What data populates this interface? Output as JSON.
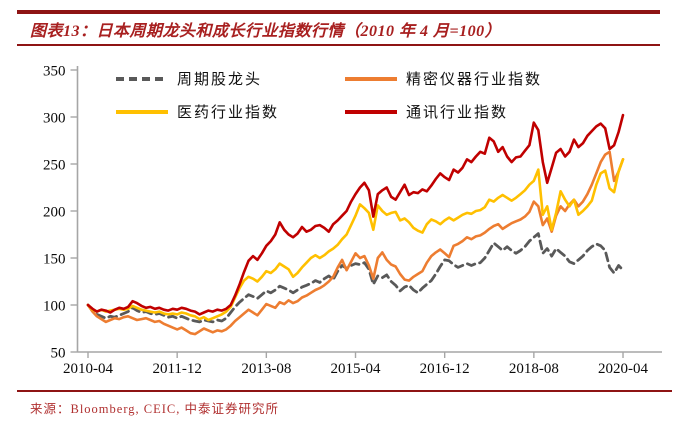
{
  "header": {
    "title": "图表13：日本周期龙头和成长行业指数行情（2010 年 4 月=100）"
  },
  "footer": {
    "source": "来源：Bloomberg, CEIC, 中泰证券研究所"
  },
  "accent_colors": {
    "rule_red": "#8e1414",
    "title_red": "#a82020",
    "source_red": "#b03030",
    "axis_gray": "#a6a6a6"
  },
  "chart_data": {
    "type": "line",
    "title": "日本周期龙头和成长行业指数行情（2010 年 4 月=100）",
    "xlabel": "",
    "ylabel": "",
    "ylim": [
      50,
      350
    ],
    "y_ticks": [
      50,
      100,
      150,
      200,
      250,
      300,
      350
    ],
    "x_tick_labels": [
      "2010-04",
      "2011-12",
      "2013-08",
      "2015-04",
      "2016-12",
      "2018-08",
      "2020-04"
    ],
    "x_frequency": "monthly",
    "x_start": "2010-04",
    "x_end": "2020-04",
    "months_per_tick": 20,
    "grid": false,
    "legend_position": "top",
    "series": [
      {
        "name": "周期股龙头",
        "color": "#595959",
        "dash": true,
        "values": [
          100,
          94,
          90,
          88,
          86,
          88,
          87,
          89,
          91,
          93,
          97,
          94,
          92,
          93,
          91,
          90,
          91,
          89,
          87,
          88,
          86,
          88,
          86,
          84,
          83,
          82,
          84,
          83,
          82,
          84,
          83,
          86,
          92,
          98,
          103,
          107,
          111,
          109,
          107,
          111,
          115,
          113,
          116,
          120,
          118,
          116,
          113,
          116,
          119,
          121,
          123,
          126,
          124,
          128,
          131,
          127,
          136,
          142,
          139,
          142,
          144,
          143,
          145,
          138,
          122,
          131,
          129,
          132,
          125,
          121,
          115,
          119,
          121,
          116,
          113,
          118,
          122,
          126,
          133,
          141,
          148,
          147,
          143,
          140,
          142,
          144,
          142,
          144,
          145,
          150,
          158,
          166,
          162,
          158,
          162,
          158,
          155,
          158,
          162,
          168,
          172,
          176,
          155,
          160,
          152,
          160,
          156,
          152,
          146,
          144,
          148,
          152,
          158,
          162,
          165,
          163,
          158,
          140,
          134,
          142,
          137
        ]
      },
      {
        "name": "精密仪器行业指数",
        "color": "#ed7d31",
        "dash": false,
        "values": [
          100,
          93,
          88,
          85,
          82,
          84,
          86,
          85,
          87,
          88,
          86,
          84,
          85,
          86,
          84,
          82,
          83,
          80,
          78,
          76,
          74,
          76,
          73,
          70,
          69,
          72,
          75,
          73,
          71,
          73,
          72,
          74,
          78,
          83,
          87,
          91,
          95,
          92,
          89,
          95,
          101,
          99,
          97,
          103,
          101,
          105,
          102,
          104,
          108,
          110,
          113,
          116,
          118,
          121,
          125,
          130,
          140,
          148,
          137,
          146,
          155,
          150,
          152,
          142,
          128,
          150,
          156,
          148,
          143,
          141,
          133,
          127,
          126,
          130,
          133,
          136,
          145,
          152,
          156,
          159,
          155,
          151,
          163,
          165,
          168,
          172,
          170,
          173,
          174,
          177,
          181,
          184,
          186,
          181,
          184,
          187,
          189,
          191,
          194,
          199,
          210,
          205,
          185,
          192,
          178,
          195,
          205,
          200,
          207,
          212,
          205,
          210,
          218,
          228,
          240,
          252,
          260,
          263,
          232,
          242,
          255
        ]
      },
      {
        "name": "医药行业指数",
        "color": "#ffc000",
        "dash": false,
        "values": [
          100,
          95,
          93,
          95,
          93,
          94,
          95,
          96,
          95,
          96,
          99,
          97,
          95,
          94,
          93,
          92,
          93,
          91,
          90,
          91,
          90,
          92,
          91,
          89,
          88,
          85,
          87,
          84,
          86,
          88,
          90,
          93,
          98,
          108,
          118,
          126,
          130,
          128,
          125,
          130,
          136,
          134,
          138,
          144,
          141,
          138,
          130,
          134,
          140,
          145,
          150,
          153,
          150,
          153,
          157,
          160,
          164,
          170,
          175,
          185,
          195,
          207,
          203,
          198,
          180,
          206,
          200,
          196,
          198,
          199,
          190,
          192,
          188,
          182,
          179,
          177,
          186,
          191,
          189,
          186,
          190,
          193,
          190,
          193,
          196,
          198,
          197,
          200,
          201,
          204,
          212,
          210,
          214,
          217,
          214,
          211,
          214,
          218,
          222,
          228,
          232,
          244,
          196,
          205,
          180,
          198,
          221,
          212,
          205,
          212,
          196,
          200,
          205,
          211,
          228,
          240,
          243,
          224,
          220,
          242,
          255
        ]
      },
      {
        "name": "通讯行业指数",
        "color": "#c00000",
        "dash": false,
        "values": [
          100,
          96,
          93,
          95,
          94,
          92,
          95,
          97,
          96,
          98,
          104,
          102,
          99,
          97,
          98,
          96,
          97,
          95,
          94,
          96,
          95,
          97,
          96,
          94,
          93,
          90,
          92,
          94,
          93,
          95,
          94,
          96,
          100,
          110,
          122,
          135,
          147,
          152,
          148,
          155,
          163,
          168,
          175,
          188,
          180,
          175,
          172,
          176,
          183,
          178,
          180,
          184,
          185,
          182,
          178,
          186,
          190,
          195,
          200,
          210,
          218,
          225,
          230,
          222,
          194,
          218,
          222,
          225,
          215,
          212,
          220,
          228,
          217,
          220,
          219,
          223,
          221,
          227,
          234,
          240,
          236,
          233,
          244,
          241,
          246,
          255,
          252,
          258,
          263,
          261,
          278,
          274,
          263,
          268,
          258,
          252,
          257,
          258,
          264,
          270,
          294,
          286,
          252,
          230,
          246,
          262,
          266,
          258,
          263,
          276,
          268,
          272,
          280,
          285,
          290,
          293,
          288,
          266,
          270,
          284,
          302
        ]
      }
    ],
    "legend_order_note": "row1: 周期股龙头 | 精密仪器行业指数 ; row2: 医药行业指数 | 通讯行业指数"
  }
}
